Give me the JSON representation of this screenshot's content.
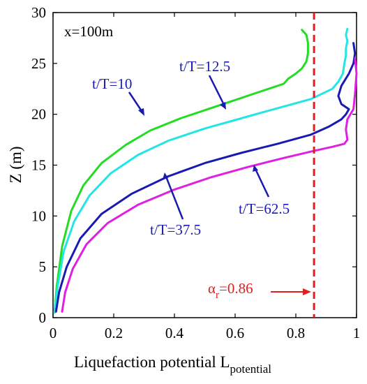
{
  "chart_data": {
    "type": "line",
    "title": "",
    "position_label": "x=100m",
    "xlabel": "Liquefaction potential L",
    "xlabel_sub": "potential",
    "ylabel": "Z (m)",
    "xlim": [
      0,
      1
    ],
    "ylim": [
      0,
      30
    ],
    "xticks": [
      "0",
      "0.2",
      "0.4",
      "0.6",
      "0.8",
      "1"
    ],
    "yticks": [
      "0",
      "5",
      "10",
      "15",
      "20",
      "25",
      "30"
    ],
    "grid": false,
    "legend": "none",
    "series": [
      {
        "name": "t/T=10",
        "color": "#22dd22",
        "x": [
          0.005,
          0.012,
          0.03,
          0.06,
          0.1,
          0.16,
          0.24,
          0.32,
          0.42,
          0.52,
          0.6,
          0.66,
          0.72,
          0.76,
          0.775,
          0.8,
          0.82,
          0.835,
          0.84,
          0.84,
          0.835,
          0.82
        ],
        "y": [
          0.5,
          3.0,
          7.0,
          10.5,
          13.0,
          15.2,
          17.0,
          18.4,
          19.6,
          20.6,
          21.4,
          22.0,
          22.6,
          23.0,
          23.5,
          24.0,
          24.5,
          25.2,
          26.0,
          27.0,
          27.8,
          28.3
        ]
      },
      {
        "name": "t/T=12.5",
        "color": "#22e6e6",
        "x": [
          0.005,
          0.015,
          0.035,
          0.07,
          0.12,
          0.19,
          0.28,
          0.38,
          0.5,
          0.62,
          0.74,
          0.85,
          0.92,
          0.94,
          0.955,
          0.96,
          0.965,
          0.965,
          0.97,
          0.965,
          0.97
        ],
        "y": [
          0.5,
          3.0,
          6.5,
          9.5,
          12.0,
          14.2,
          16.0,
          17.4,
          18.6,
          19.6,
          20.6,
          21.5,
          22.5,
          23.2,
          24.0,
          25.0,
          25.8,
          26.5,
          27.2,
          27.8,
          28.4
        ]
      },
      {
        "name": "t/T=37.5",
        "color": "#1a1ab3",
        "x": [
          0.01,
          0.02,
          0.045,
          0.09,
          0.16,
          0.26,
          0.38,
          0.5,
          0.62,
          0.74,
          0.85,
          0.91,
          0.95,
          0.965,
          0.975,
          0.95,
          0.94,
          0.95,
          0.975,
          0.99,
          0.995,
          0.99
        ],
        "y": [
          0.6,
          2.5,
          5.0,
          7.8,
          10.2,
          12.2,
          13.9,
          15.2,
          16.2,
          17.1,
          18.0,
          18.8,
          19.5,
          20.0,
          20.5,
          21.0,
          21.8,
          22.8,
          24.0,
          25.0,
          26.0,
          27.0
        ]
      },
      {
        "name": "t/T=62.5",
        "color": "#e020e0",
        "x": [
          0.03,
          0.04,
          0.065,
          0.11,
          0.18,
          0.28,
          0.4,
          0.52,
          0.64,
          0.76,
          0.86,
          0.92,
          0.96,
          0.97,
          0.965,
          0.97,
          0.99,
          0.995,
          1.0,
          0.995
        ],
        "y": [
          0.6,
          2.5,
          4.8,
          7.2,
          9.3,
          11.1,
          12.6,
          13.8,
          14.8,
          15.7,
          16.4,
          16.8,
          17.1,
          17.5,
          18.5,
          19.5,
          20.5,
          22.0,
          24.0,
          25.5
        ]
      }
    ],
    "labels": [
      {
        "text": "t/T=10",
        "color": "#1a1ab3"
      },
      {
        "text": "t/T=12.5",
        "color": "#1a1ab3"
      },
      {
        "text": "t/T=37.5",
        "color": "#1a1ab3"
      },
      {
        "text": "t/T=62.5",
        "color": "#1a1ab3"
      }
    ],
    "reference_line": {
      "x": 0.86,
      "color": "#e02020",
      "label_symbol": "α",
      "label_sub": "r",
      "label_value": "=0.86"
    }
  }
}
